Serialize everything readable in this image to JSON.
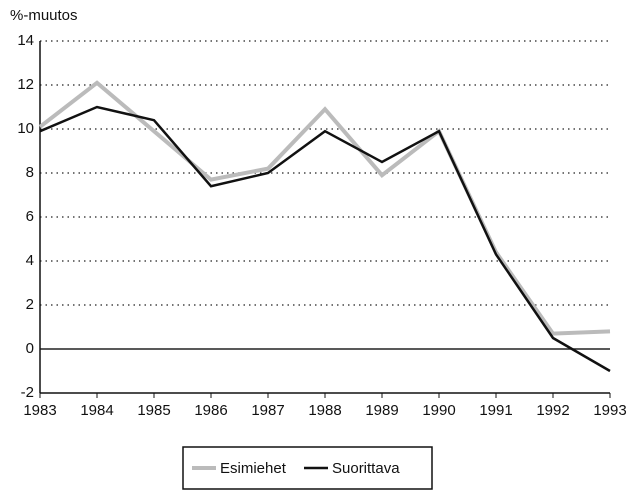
{
  "chart_data": {
    "type": "line",
    "y_label": "%-muutos",
    "x": [
      1983,
      1984,
      1985,
      1986,
      1987,
      1988,
      1989,
      1990,
      1991,
      1992,
      1993
    ],
    "xlim": [
      1983,
      1993
    ],
    "xticks": [
      1983,
      1984,
      1985,
      1986,
      1987,
      1988,
      1989,
      1990,
      1991,
      1992,
      1993
    ],
    "ylim": [
      -2,
      14
    ],
    "yticks": [
      -2,
      0,
      2,
      4,
      6,
      8,
      10,
      12,
      14
    ],
    "grid": true,
    "legend": "bottom",
    "series": [
      {
        "name": "Esimiehet",
        "color": "#bbbbbb",
        "values": [
          10.1,
          12.1,
          9.9,
          7.7,
          8.2,
          10.9,
          7.9,
          9.9,
          4.4,
          0.7,
          0.8
        ]
      },
      {
        "name": "Suorittava",
        "color": "#111111",
        "values": [
          9.9,
          11.0,
          10.4,
          7.4,
          8.0,
          9.9,
          8.5,
          9.9,
          4.3,
          0.5,
          -1.0
        ]
      }
    ]
  }
}
